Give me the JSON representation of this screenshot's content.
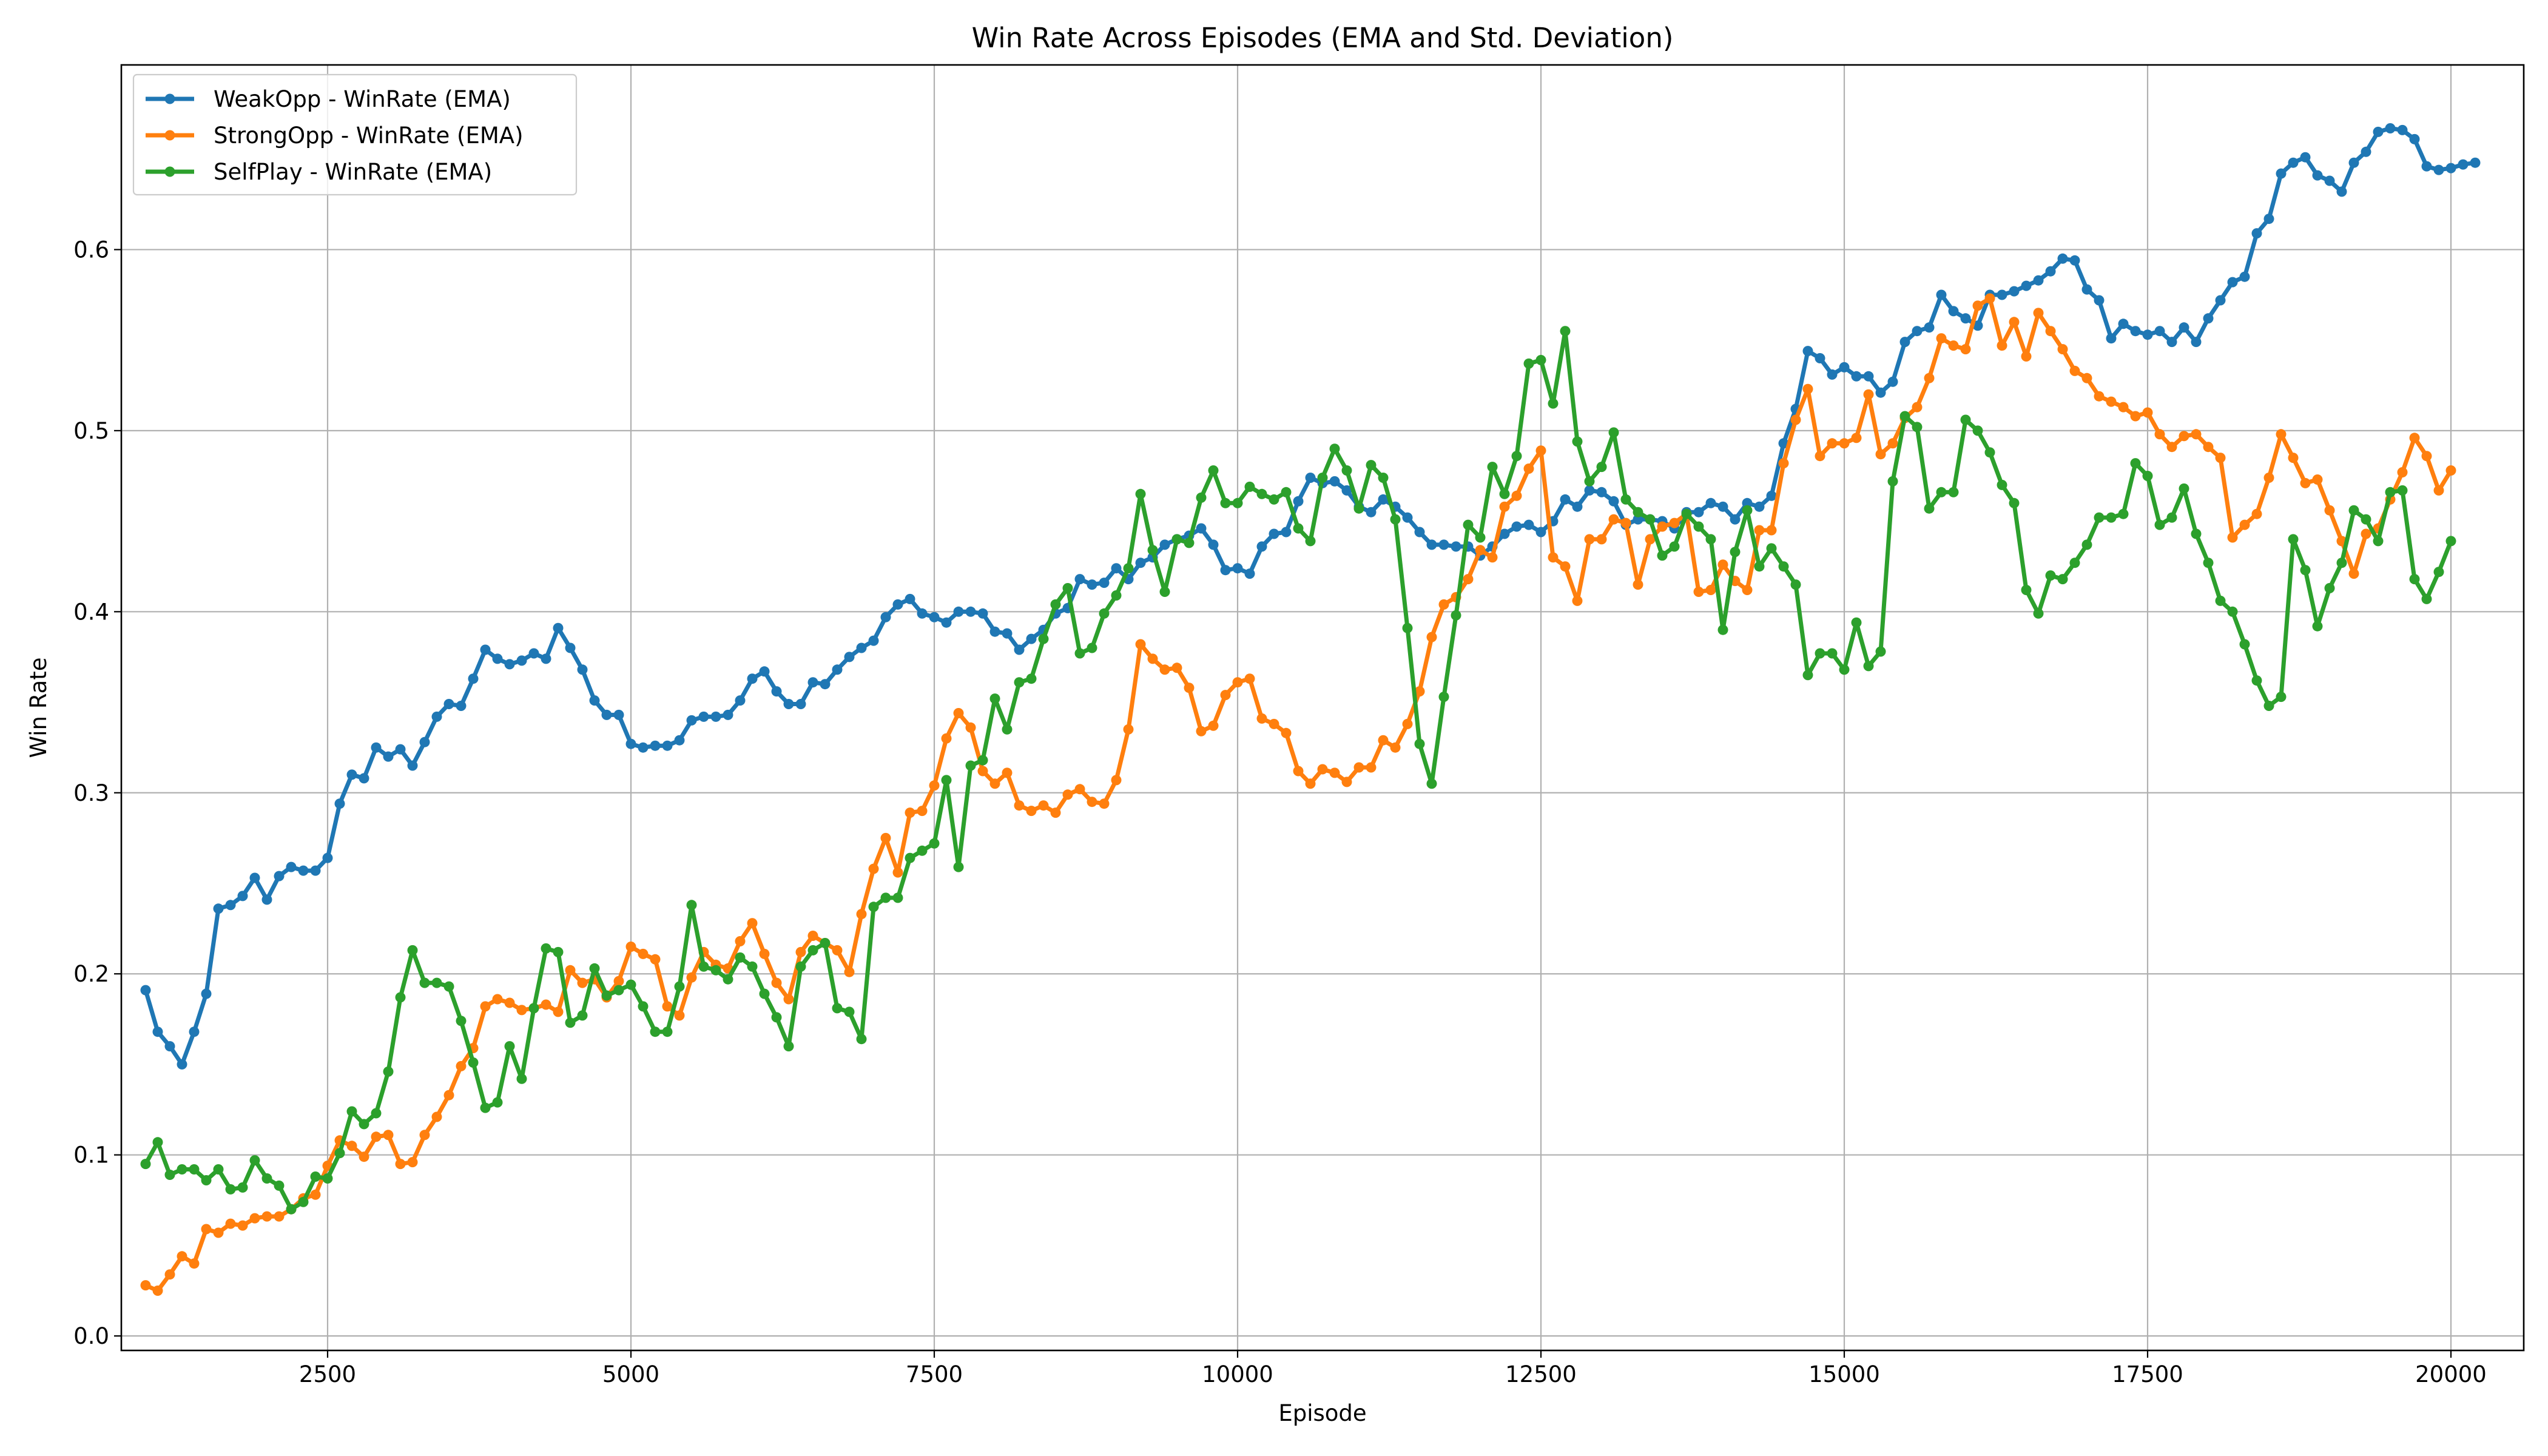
{
  "chart_data": {
    "type": "line",
    "title": "Win Rate Across Episodes (EMA and Std. Deviation)",
    "xlabel": "Episode",
    "ylabel": "Win Rate",
    "xlim": [
      800,
      20600
    ],
    "ylim": [
      -0.008,
      0.702
    ],
    "xticks": [
      2500,
      5000,
      7500,
      10000,
      12500,
      15000,
      17500,
      20000
    ],
    "yticks": [
      0.0,
      0.1,
      0.2,
      0.3,
      0.4,
      0.5,
      0.6
    ],
    "grid": true,
    "legend_position": "top-left",
    "x_start": 1000,
    "x_step": 100,
    "series": [
      {
        "name": "WeakOpp - WinRate (EMA)",
        "color": "#1f77b4",
        "values": [
          0.191,
          0.168,
          0.16,
          0.15,
          0.168,
          0.189,
          0.236,
          0.238,
          0.243,
          0.253,
          0.241,
          0.254,
          0.259,
          0.257,
          0.257,
          0.264,
          0.294,
          0.31,
          0.308,
          0.325,
          0.32,
          0.324,
          0.315,
          0.328,
          0.342,
          0.349,
          0.348,
          0.363,
          0.379,
          0.374,
          0.371,
          0.373,
          0.377,
          0.374,
          0.391,
          0.38,
          0.368,
          0.351,
          0.343,
          0.343,
          0.327,
          0.325,
          0.326,
          0.326,
          0.329,
          0.34,
          0.342,
          0.342,
          0.343,
          0.351,
          0.363,
          0.367,
          0.356,
          0.349,
          0.349,
          0.361,
          0.36,
          0.368,
          0.375,
          0.38,
          0.384,
          0.397,
          0.404,
          0.407,
          0.399,
          0.397,
          0.394,
          0.4,
          0.4,
          0.399,
          0.389,
          0.388,
          0.379,
          0.385,
          0.39,
          0.399,
          0.402,
          0.418,
          0.415,
          0.416,
          0.424,
          0.418,
          0.427,
          0.43,
          0.437,
          0.44,
          0.442,
          0.446,
          0.437,
          0.423,
          0.424,
          0.421,
          0.436,
          0.443,
          0.444,
          0.461,
          0.474,
          0.471,
          0.472,
          0.467,
          0.458,
          0.455,
          0.462,
          0.458,
          0.452,
          0.444,
          0.437,
          0.437,
          0.436,
          0.436,
          0.431,
          0.436,
          0.443,
          0.447,
          0.448,
          0.444,
          0.45,
          0.462,
          0.458,
          0.467,
          0.466,
          0.461,
          0.448,
          0.451,
          0.451,
          0.45,
          0.446,
          0.455,
          0.455,
          0.46,
          0.458,
          0.451,
          0.46,
          0.458,
          0.464,
          0.493,
          0.512,
          0.544,
          0.54,
          0.531,
          0.535,
          0.53,
          0.53,
          0.521,
          0.527,
          0.549,
          0.555,
          0.557,
          0.575,
          0.566,
          0.562,
          0.558,
          0.575,
          0.575,
          0.577,
          0.58,
          0.583,
          0.588,
          0.595,
          0.594,
          0.578,
          0.572,
          0.551,
          0.559,
          0.555,
          0.553,
          0.555,
          0.549,
          0.557,
          0.549,
          0.562,
          0.572,
          0.582,
          0.585,
          0.609,
          0.617,
          0.642,
          0.648,
          0.651,
          0.641,
          0.638,
          0.632,
          0.648,
          0.654,
          0.665,
          0.667,
          0.666,
          0.661,
          0.646,
          0.644,
          0.645,
          0.647,
          0.648
        ]
      },
      {
        "name": "StrongOpp - WinRate (EMA)",
        "color": "#ff7f0e",
        "values": [
          0.028,
          0.025,
          0.034,
          0.044,
          0.04,
          0.059,
          0.057,
          0.062,
          0.061,
          0.065,
          0.066,
          0.066,
          0.07,
          0.076,
          0.078,
          0.094,
          0.108,
          0.105,
          0.099,
          0.11,
          0.111,
          0.095,
          0.096,
          0.111,
          0.121,
          0.133,
          0.149,
          0.159,
          0.182,
          0.186,
          0.184,
          0.18,
          0.181,
          0.183,
          0.179,
          0.202,
          0.195,
          0.197,
          0.187,
          0.196,
          0.215,
          0.211,
          0.208,
          0.182,
          0.177,
          0.198,
          0.212,
          0.205,
          0.203,
          0.218,
          0.228,
          0.211,
          0.195,
          0.186,
          0.212,
          0.221,
          0.217,
          0.213,
          0.201,
          0.233,
          0.258,
          0.275,
          0.256,
          0.289,
          0.29,
          0.304,
          0.33,
          0.344,
          0.336,
          0.312,
          0.305,
          0.311,
          0.293,
          0.29,
          0.293,
          0.289,
          0.299,
          0.302,
          0.295,
          0.294,
          0.307,
          0.335,
          0.382,
          0.374,
          0.368,
          0.369,
          0.358,
          0.334,
          0.337,
          0.354,
          0.361,
          0.363,
          0.341,
          0.338,
          0.333,
          0.312,
          0.305,
          0.313,
          0.311,
          0.306,
          0.314,
          0.314,
          0.329,
          0.325,
          0.338,
          0.356,
          0.386,
          0.404,
          0.408,
          0.418,
          0.434,
          0.43,
          0.458,
          0.464,
          0.479,
          0.489,
          0.43,
          0.425,
          0.406,
          0.44,
          0.44,
          0.451,
          0.449,
          0.415,
          0.44,
          0.447,
          0.449,
          0.454,
          0.411,
          0.412,
          0.426,
          0.417,
          0.412,
          0.445,
          0.445,
          0.482,
          0.506,
          0.523,
          0.486,
          0.493,
          0.493,
          0.496,
          0.52,
          0.487,
          0.493,
          0.507,
          0.513,
          0.529,
          0.551,
          0.547,
          0.545,
          0.569,
          0.573,
          0.547,
          0.56,
          0.541,
          0.565,
          0.555,
          0.545,
          0.533,
          0.529,
          0.519,
          0.516,
          0.513,
          0.508,
          0.51,
          0.498,
          0.491,
          0.497,
          0.498,
          0.491,
          0.485,
          0.441,
          0.448,
          0.454,
          0.474,
          0.498,
          0.485,
          0.471,
          0.473,
          0.456,
          0.439,
          0.421,
          0.443,
          0.446,
          0.462,
          0.477,
          0.496,
          0.486,
          0.467,
          0.478
        ]
      },
      {
        "name": "SelfPlay - WinRate (EMA)",
        "color": "#2ca02c",
        "values": [
          0.095,
          0.107,
          0.089,
          0.092,
          0.092,
          0.086,
          0.092,
          0.081,
          0.082,
          0.097,
          0.087,
          0.083,
          0.07,
          0.074,
          0.088,
          0.087,
          0.101,
          0.124,
          0.117,
          0.123,
          0.146,
          0.187,
          0.213,
          0.195,
          0.195,
          0.193,
          0.174,
          0.151,
          0.126,
          0.129,
          0.16,
          0.142,
          0.181,
          0.214,
          0.212,
          0.173,
          0.177,
          0.203,
          0.188,
          0.191,
          0.194,
          0.182,
          0.168,
          0.168,
          0.193,
          0.238,
          0.204,
          0.202,
          0.197,
          0.209,
          0.204,
          0.189,
          0.176,
          0.16,
          0.204,
          0.213,
          0.217,
          0.181,
          0.179,
          0.164,
          0.237,
          0.242,
          0.242,
          0.264,
          0.268,
          0.272,
          0.307,
          0.259,
          0.315,
          0.318,
          0.352,
          0.335,
          0.361,
          0.363,
          0.385,
          0.404,
          0.413,
          0.377,
          0.38,
          0.399,
          0.409,
          0.424,
          0.465,
          0.434,
          0.411,
          0.44,
          0.438,
          0.463,
          0.478,
          0.46,
          0.46,
          0.469,
          0.465,
          0.462,
          0.466,
          0.446,
          0.439,
          0.474,
          0.49,
          0.478,
          0.457,
          0.481,
          0.474,
          0.451,
          0.391,
          0.327,
          0.305,
          0.353,
          0.398,
          0.448,
          0.441,
          0.48,
          0.465,
          0.486,
          0.537,
          0.539,
          0.515,
          0.555,
          0.494,
          0.472,
          0.48,
          0.499,
          0.462,
          0.455,
          0.451,
          0.431,
          0.436,
          0.454,
          0.447,
          0.44,
          0.39,
          0.433,
          0.456,
          0.425,
          0.435,
          0.425,
          0.415,
          0.365,
          0.377,
          0.377,
          0.368,
          0.394,
          0.37,
          0.378,
          0.472,
          0.508,
          0.502,
          0.457,
          0.466,
          0.466,
          0.506,
          0.5,
          0.488,
          0.47,
          0.46,
          0.412,
          0.399,
          0.42,
          0.418,
          0.427,
          0.437,
          0.452,
          0.452,
          0.454,
          0.482,
          0.475,
          0.448,
          0.452,
          0.468,
          0.443,
          0.427,
          0.406,
          0.4,
          0.382,
          0.362,
          0.348,
          0.353,
          0.44,
          0.423,
          0.392,
          0.413,
          0.427,
          0.456,
          0.451,
          0.439,
          0.466,
          0.467,
          0.418,
          0.407,
          0.422,
          0.439
        ]
      }
    ]
  }
}
